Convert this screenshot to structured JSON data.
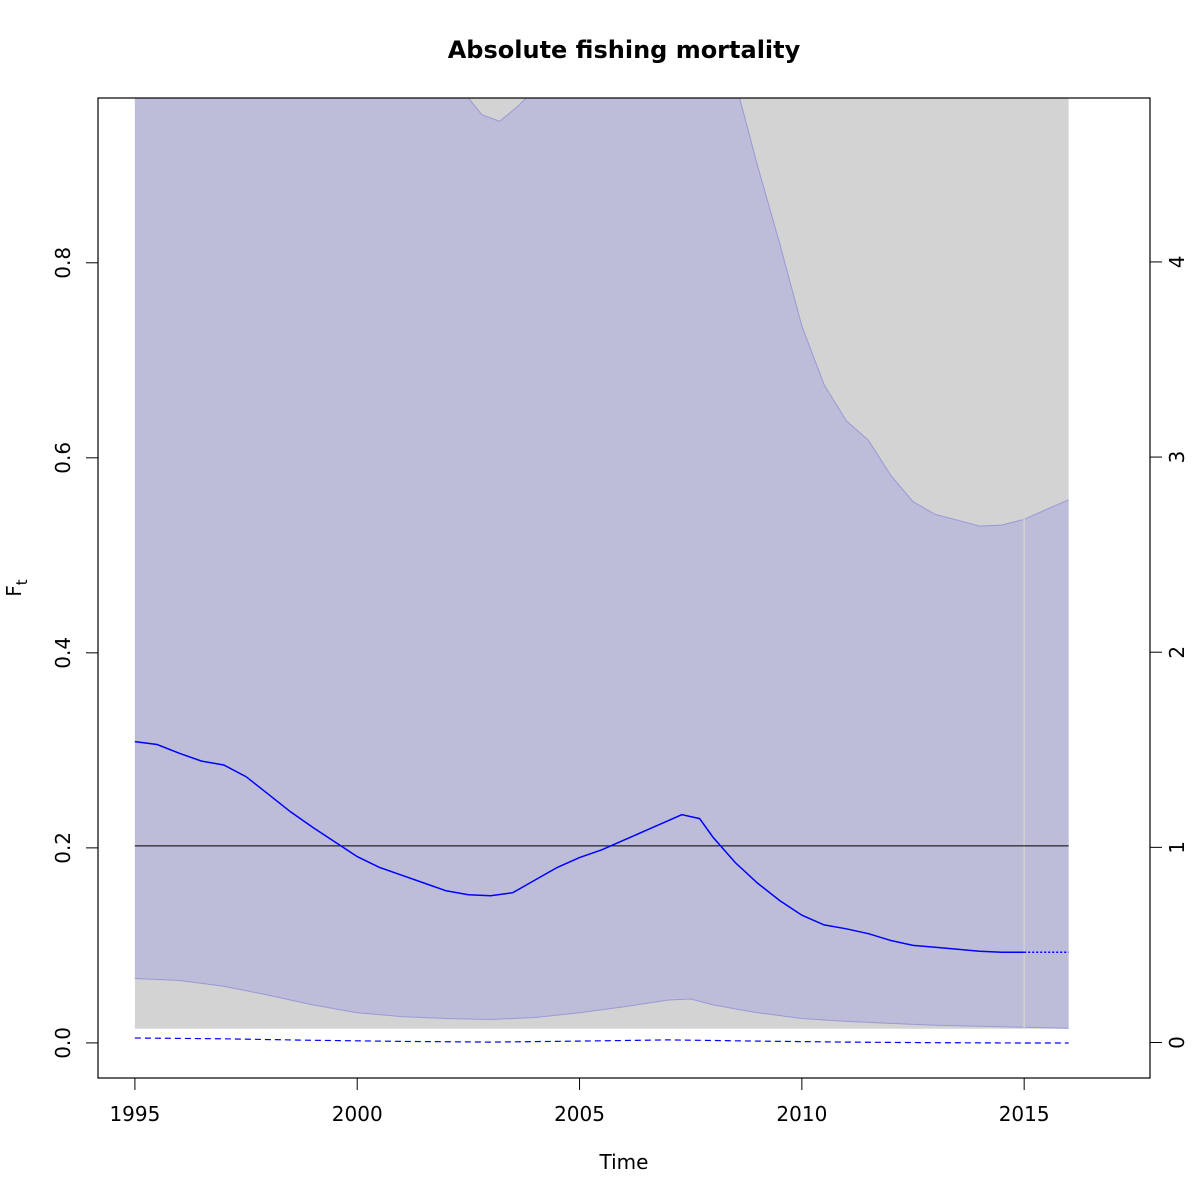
{
  "chart_data": {
    "type": "line",
    "title": "Absolute fishing mortality",
    "xlabel": "Time",
    "ylabel": "F",
    "ylabel_subscript": "t",
    "xlim": [
      1994.17,
      2017.83
    ],
    "ylim": [
      -0.036,
      0.969
    ],
    "ylim_right": [
      -0.182,
      4.84
    ],
    "x_ticks": [
      1995,
      2000,
      2005,
      2010,
      2015
    ],
    "y_ticks": [
      0.0,
      0.2,
      0.4,
      0.6,
      0.8
    ],
    "y_ticks_right": [
      0,
      1,
      2,
      3,
      4
    ],
    "y_tick_labels": [
      "0.0",
      "0.2",
      "0.4",
      "0.6",
      "0.8"
    ],
    "y_tick_labels_right": [
      "0",
      "1",
      "2",
      "3",
      "4"
    ],
    "reference_line": 0.202,
    "forecast_start": 2015,
    "colors": {
      "estimate": "#0000ff",
      "ci_fill": "#bdbdd9",
      "ci_edge": "#9999d6",
      "secondary_fill": "#d3d3d3",
      "reference": "#000000",
      "forecast_marker": "#d3d3d3"
    },
    "series": [
      {
        "role": "estimate",
        "x": [
          1995,
          1995.5,
          1996,
          1996.5,
          1997,
          1997.5,
          1998,
          1998.5,
          1999,
          1999.5,
          2000,
          2000.5,
          2001,
          2001.5,
          2002,
          2002.5,
          2003,
          2003.5,
          2004,
          2004.5,
          2005,
          2005.5,
          2006,
          2006.5,
          2007,
          2007.3,
          2007.7,
          2008,
          2008.5,
          2009,
          2009.5,
          2010,
          2010.5,
          2011,
          2011.5,
          2012,
          2012.5,
          2013,
          2013.5,
          2014,
          2014.5,
          2015
        ],
        "y": [
          0.309,
          0.306,
          0.297,
          0.289,
          0.285,
          0.273,
          0.255,
          0.237,
          0.221,
          0.206,
          0.191,
          0.18,
          0.172,
          0.164,
          0.156,
          0.152,
          0.151,
          0.154,
          0.167,
          0.18,
          0.19,
          0.198,
          0.208,
          0.218,
          0.228,
          0.234,
          0.23,
          0.211,
          0.185,
          0.164,
          0.146,
          0.131,
          0.121,
          0.117,
          0.112,
          0.105,
          0.1,
          0.098,
          0.096,
          0.094,
          0.093,
          0.093
        ]
      },
      {
        "role": "estimate-forecast",
        "x": [
          2015,
          2016
        ],
        "y": [
          0.093,
          0.093
        ]
      },
      {
        "role": "secondary-estimate",
        "x": [
          1995,
          1997,
          1999,
          2001,
          2003,
          2005,
          2007,
          2009,
          2011,
          2013,
          2015,
          2016
        ],
        "y": [
          0.005,
          0.0042,
          0.0027,
          0.0015,
          0.0008,
          0.0018,
          0.0031,
          0.0018,
          0.0008,
          0.0002,
          -0.0001,
          -0.0001
        ]
      }
    ],
    "ci_upper": {
      "x": [
        1995,
        2002.5,
        2002.8,
        2003.2,
        2003.6,
        2003.8,
        2008.6,
        2009,
        2009.5,
        2010,
        2010.5,
        2011,
        2011.5,
        2012,
        2012.5,
        2013,
        2013.5,
        2014,
        2014.5,
        2015,
        2015.5,
        2016
      ],
      "y": [
        0.975,
        0.975,
        0.952,
        0.945,
        0.96,
        0.975,
        0.975,
        0.9,
        0.82,
        0.735,
        0.675,
        0.638,
        0.618,
        0.582,
        0.555,
        0.542,
        0.536,
        0.53,
        0.531,
        0.537,
        0.547,
        0.557
      ]
    },
    "ci_lower": {
      "x": [
        1995,
        1996,
        1997,
        1998,
        1999,
        2000,
        2001,
        2002,
        2003,
        2004,
        2005,
        2006,
        2007,
        2007.5,
        2008,
        2009,
        2010,
        2011,
        2012,
        2013,
        2014,
        2015,
        2016
      ],
      "y": [
        0.066,
        0.064,
        0.058,
        0.049,
        0.039,
        0.031,
        0.027,
        0.025,
        0.024,
        0.026,
        0.031,
        0.037,
        0.044,
        0.045,
        0.039,
        0.031,
        0.025,
        0.022,
        0.02,
        0.018,
        0.017,
        0.016,
        0.015
      ]
    },
    "secondary_band": {
      "x_start": 1995,
      "x_end": 2016,
      "y_low": 0.0145,
      "y_high": 0.975
    }
  }
}
